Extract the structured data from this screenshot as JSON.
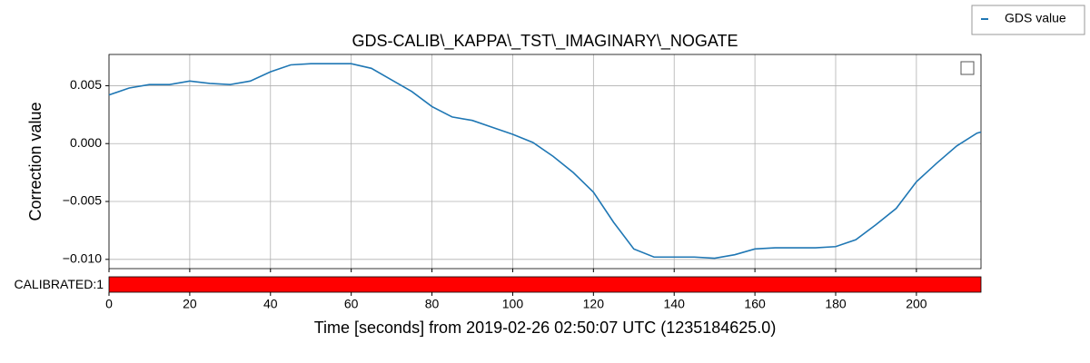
{
  "chart_data": {
    "type": "line",
    "title": "GDS-CALIB\\_KAPPA\\_TST\\_IMAGINARY\\_NOGATE",
    "x_label": "Time [seconds] from 2019-02-26 02:50:07 UTC (1235184625.0)",
    "y_label": "Correction value",
    "x": [
      0,
      5,
      10,
      15,
      20,
      25,
      30,
      35,
      40,
      45,
      50,
      55,
      60,
      65,
      70,
      75,
      80,
      85,
      90,
      95,
      100,
      105,
      110,
      115,
      120,
      125,
      130,
      135,
      140,
      145,
      150,
      155,
      160,
      165,
      170,
      175,
      180,
      185,
      190,
      195,
      200,
      205,
      210,
      215,
      216
    ],
    "series": [
      {
        "name": "GDS value",
        "color": "#1f77b4",
        "values": [
          0.0042,
          0.0048,
          0.0051,
          0.0051,
          0.0054,
          0.0052,
          0.0051,
          0.0054,
          0.0062,
          0.0068,
          0.0069,
          0.0069,
          0.0069,
          0.0065,
          0.0055,
          0.0045,
          0.0032,
          0.0023,
          0.002,
          0.0014,
          0.0008,
          0.0001,
          -0.0011,
          -0.0025,
          -0.0042,
          -0.0068,
          -0.0091,
          -0.0098,
          -0.0098,
          -0.0098,
          -0.0099,
          -0.0096,
          -0.0091,
          -0.009,
          -0.009,
          -0.009,
          -0.0089,
          -0.0083,
          -0.007,
          -0.0056,
          -0.0033,
          -0.0017,
          -0.0002,
          0.0009,
          0.001
        ]
      }
    ],
    "xlim": [
      0,
      216
    ],
    "ylim": [
      -0.0108,
      0.0077
    ],
    "xticks": [
      0,
      20,
      40,
      60,
      80,
      100,
      120,
      140,
      160,
      180,
      200
    ],
    "yticks": [
      0.005,
      {
        "value": 0,
        "label": "0.000"
      },
      {
        "value": -0.005,
        "label": "−0.005"
      },
      {
        "value": -0.01,
        "label": "−0.010"
      }
    ],
    "grid": true,
    "segments": [
      {
        "label": "CALIBRATED:1",
        "start": 0,
        "end": 216,
        "color": "#ff0000"
      }
    ]
  }
}
